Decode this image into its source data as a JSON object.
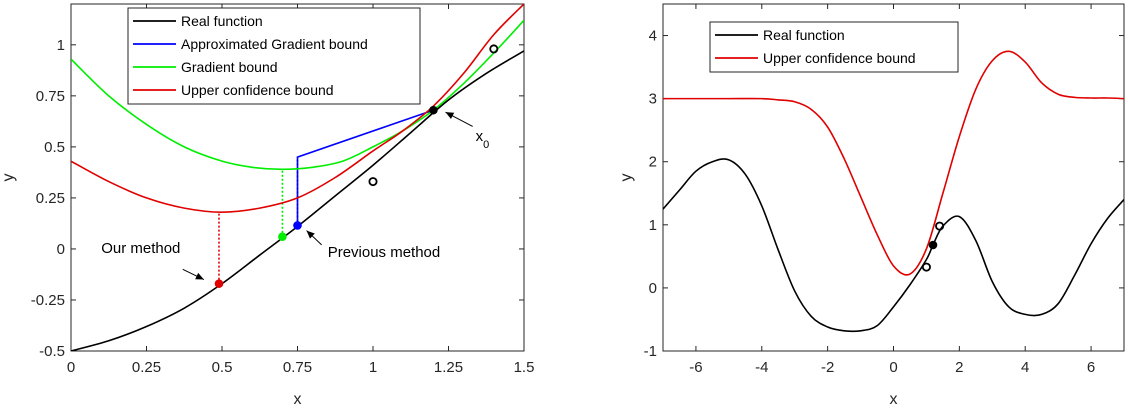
{
  "chart_data": [
    {
      "type": "line",
      "title": "",
      "xlabel": "x",
      "ylabel": "y",
      "xlim": [
        0,
        1.5
      ],
      "ylim": [
        -0.5,
        1.2
      ],
      "xticks": [
        0,
        0.25,
        0.5,
        0.75,
        1,
        1.25,
        1.5
      ],
      "xtick_labels": [
        "0",
        "0.25",
        "0.5",
        "0.75",
        "1",
        "1.25",
        "1.5"
      ],
      "yticks": [
        -0.5,
        -0.25,
        0,
        0.25,
        0.5,
        0.75,
        1
      ],
      "ytick_labels": [
        "-0.5",
        "-0.25",
        "0",
        "0.25",
        "0.5",
        "0.75",
        "1"
      ],
      "legend_position": "top",
      "series": [
        {
          "name": "Real function",
          "color": "#000000",
          "x": [
            0,
            0.125,
            0.25,
            0.375,
            0.5,
            0.625,
            0.75,
            0.875,
            1.0,
            1.125,
            1.25,
            1.375,
            1.5
          ],
          "y": [
            -0.5,
            -0.45,
            -0.38,
            -0.29,
            -0.17,
            -0.03,
            0.11,
            0.26,
            0.41,
            0.57,
            0.73,
            0.86,
            0.97
          ]
        },
        {
          "name": "Approximated Gradient bound",
          "color": "#0000ff",
          "x": [
            0.75,
            0.75,
            1.2
          ],
          "y": [
            0.115,
            0.45,
            0.68
          ]
        },
        {
          "name": "Gradient bound",
          "color": "#00ee00",
          "x": [
            0,
            0.125,
            0.25,
            0.375,
            0.5,
            0.6,
            0.7,
            0.8,
            0.9,
            1.0,
            1.1,
            1.2,
            1.3,
            1.4,
            1.5
          ],
          "y": [
            0.93,
            0.75,
            0.61,
            0.5,
            0.43,
            0.4,
            0.39,
            0.4,
            0.43,
            0.5,
            0.58,
            0.68,
            0.81,
            0.96,
            1.12
          ]
        },
        {
          "name": "Upper confidence bound",
          "color": "#e00000",
          "x": [
            0,
            0.125,
            0.25,
            0.375,
            0.5,
            0.625,
            0.75,
            0.875,
            1.0,
            1.1,
            1.2,
            1.3,
            1.4,
            1.5
          ],
          "y": [
            0.43,
            0.33,
            0.25,
            0.2,
            0.18,
            0.2,
            0.25,
            0.35,
            0.48,
            0.58,
            0.7,
            0.86,
            1.05,
            1.2
          ]
        }
      ],
      "dotted_lines": [
        {
          "x": 0.49,
          "y0": -0.17,
          "y1": 0.18,
          "color": "#e00000"
        },
        {
          "x": 0.7,
          "y0": 0.06,
          "y1": 0.39,
          "color": "#00ee00"
        },
        {
          "x": 0.75,
          "y0": 0.115,
          "y1": 0.45,
          "color": "#0000ff"
        }
      ],
      "points": [
        {
          "x": 0.49,
          "y": -0.17,
          "color": "#e00000",
          "filled": true
        },
        {
          "x": 0.7,
          "y": 0.06,
          "color": "#00ee00",
          "filled": true
        },
        {
          "x": 0.75,
          "y": 0.115,
          "color": "#0000ff",
          "filled": true
        },
        {
          "x": 1.2,
          "y": 0.68,
          "color": "#000000",
          "filled": true
        },
        {
          "x": 1.0,
          "y": 0.33,
          "color": "#000000",
          "filled": false
        },
        {
          "x": 1.4,
          "y": 0.98,
          "color": "#000000",
          "filled": false
        }
      ],
      "annotations": [
        {
          "text": "Our method",
          "text_x": 0.1,
          "text_y": -0.02,
          "arrow_from": [
            0.37,
            -0.1
          ],
          "arrow_to": [
            0.44,
            -0.15
          ]
        },
        {
          "text": "Previous method",
          "text_x": 0.85,
          "text_y": -0.04,
          "arrow_from": [
            0.83,
            0.02
          ],
          "arrow_to": [
            0.78,
            0.09
          ]
        },
        {
          "text": "x",
          "subscript": "0",
          "text_x": 1.34,
          "text_y": 0.53,
          "arrow_from": [
            1.33,
            0.6
          ],
          "arrow_to": [
            1.24,
            0.67
          ]
        }
      ]
    },
    {
      "type": "line",
      "title": "",
      "xlabel": "x",
      "ylabel": "y",
      "xlim": [
        -7,
        7
      ],
      "ylim": [
        -1,
        4.5
      ],
      "xticks": [
        -6,
        -4,
        -2,
        0,
        2,
        4,
        6
      ],
      "xtick_labels": [
        "-6",
        "-4",
        "-2",
        "0",
        "2",
        "4",
        "6"
      ],
      "yticks": [
        -1,
        0,
        1,
        2,
        3,
        4
      ],
      "ytick_labels": [
        "-1",
        "0",
        "1",
        "2",
        "3",
        "4"
      ],
      "legend_position": "top-left",
      "series": [
        {
          "name": "Real function",
          "color": "#000000",
          "x": [
            -7,
            -6.5,
            -6,
            -5.5,
            -5,
            -4.5,
            -4,
            -3.5,
            -3,
            -2.5,
            -2,
            -1.5,
            -1,
            -0.5,
            0,
            0.5,
            1,
            1.2,
            1.5,
            2,
            2.5,
            3,
            3.5,
            4,
            4.5,
            5,
            5.5,
            6,
            6.5,
            7
          ],
          "y": [
            1.25,
            1.55,
            1.85,
            2.0,
            2.03,
            1.8,
            1.3,
            0.6,
            -0.05,
            -0.45,
            -0.62,
            -0.68,
            -0.68,
            -0.6,
            -0.3,
            0.05,
            0.45,
            0.68,
            0.98,
            1.13,
            0.75,
            0.1,
            -0.3,
            -0.42,
            -0.42,
            -0.25,
            0.2,
            0.7,
            1.1,
            1.4
          ]
        },
        {
          "name": "Upper confidence bound",
          "color": "#e00000",
          "x": [
            -7,
            -6,
            -5,
            -4,
            -3.5,
            -3,
            -2.5,
            -2,
            -1.5,
            -1,
            -0.5,
            0,
            0.5,
            1,
            1.5,
            2,
            2.5,
            3,
            3.5,
            4,
            4.5,
            5,
            5.5,
            6,
            6.5,
            7
          ],
          "y": [
            3.0,
            3.0,
            3.0,
            3.0,
            2.98,
            2.95,
            2.83,
            2.55,
            2.05,
            1.45,
            0.85,
            0.35,
            0.22,
            0.62,
            1.5,
            2.4,
            3.15,
            3.6,
            3.75,
            3.58,
            3.25,
            3.07,
            3.02,
            3.01,
            3.01,
            3.0
          ]
        }
      ],
      "points": [
        {
          "x": 1.2,
          "y": 0.68,
          "color": "#000000",
          "filled": true
        },
        {
          "x": 1.0,
          "y": 0.33,
          "color": "#000000",
          "filled": false
        },
        {
          "x": 1.4,
          "y": 0.98,
          "color": "#000000",
          "filled": false
        }
      ]
    }
  ]
}
